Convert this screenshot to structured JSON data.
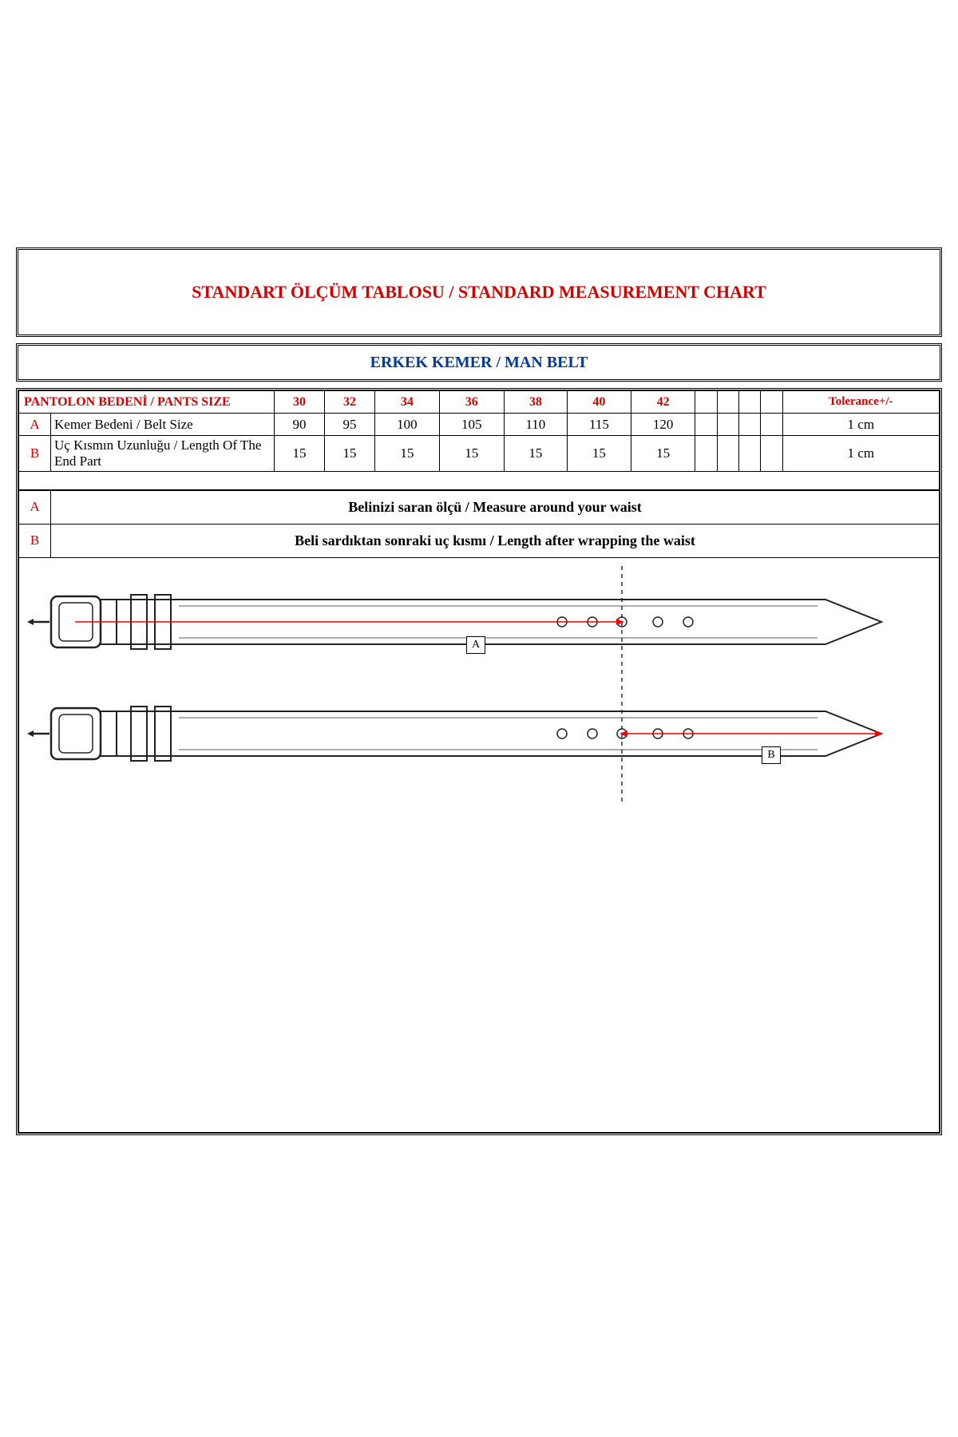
{
  "title": "STANDART ÖLÇÜM TABLOSU / STANDARD MEASUREMENT CHART",
  "subtitle": "ERKEK KEMER / MAN BELT",
  "colors": {
    "accent_red": "#d40000",
    "accent_blue": "#003a9e",
    "border": "#000000",
    "bg": "#ffffff",
    "belt_stroke": "#222222",
    "arrow": "#ee0000",
    "dash": "#1a2a8a"
  },
  "table": {
    "header_label": "PANTOLON BEDENİ / PANTS SIZE",
    "sizes": [
      "30",
      "32",
      "34",
      "36",
      "38",
      "40",
      "42"
    ],
    "tolerance_header": "Tolerance+/-",
    "rows": [
      {
        "key": "A",
        "label": "Kemer Bedeni / Belt Size",
        "values": [
          "90",
          "95",
          "100",
          "105",
          "110",
          "115",
          "120"
        ],
        "tolerance": "1 cm"
      },
      {
        "key": "B",
        "label": "Uç Kısmın Uzunluğu / Length Of The End Part",
        "values": [
          "15",
          "15",
          "15",
          "15",
          "15",
          "15",
          "15"
        ],
        "tolerance": "1 cm"
      }
    ],
    "extras": 4
  },
  "descriptions": [
    {
      "key": "A",
      "text": "Belinizi saran ölçü / Measure around your waist"
    },
    {
      "key": "B",
      "text": "Beli sardıktan sonraki uç kısmı / Length after wrapping the waist"
    }
  ],
  "diagram": {
    "marker_a": "A",
    "marker_b": "B"
  }
}
